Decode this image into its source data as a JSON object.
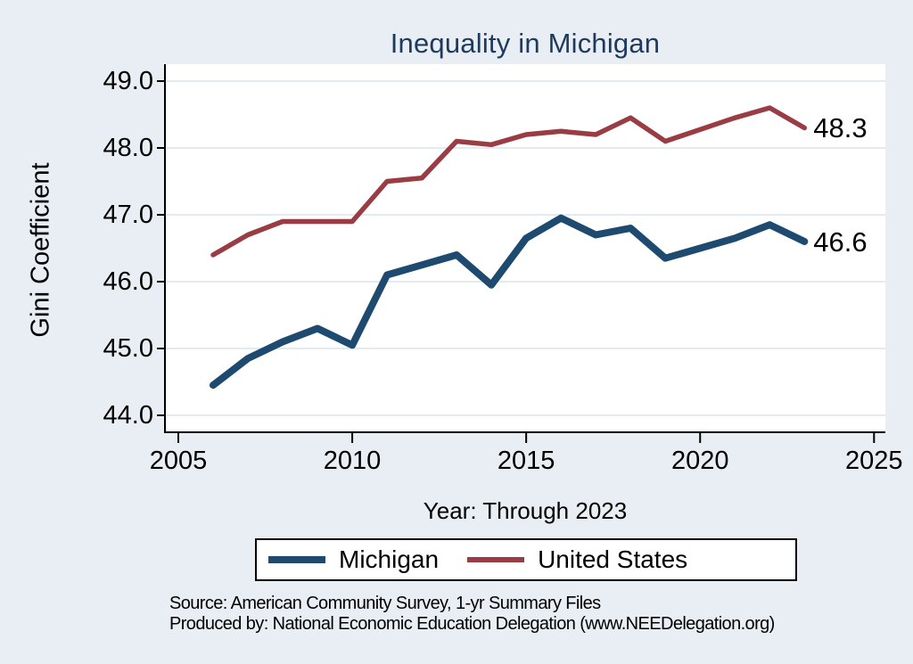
{
  "title": "Inequality in Michigan",
  "y_axis": {
    "label": "Gini Coefficient",
    "tick_labels": [
      "49.0",
      "48.0",
      "47.0",
      "46.0",
      "45.0",
      "44.0"
    ],
    "tick_values": [
      49,
      48,
      47,
      46,
      45,
      44
    ]
  },
  "x_axis": {
    "label": "Year: Through 2023",
    "tick_labels": [
      "2005",
      "2010",
      "2015",
      "2020",
      "2025"
    ],
    "tick_values": [
      2005,
      2010,
      2015,
      2020,
      2025
    ]
  },
  "legend": {
    "items": [
      {
        "label": "Michigan",
        "color": "#1e4a70"
      },
      {
        "label": "United States",
        "color": "#9a3c44"
      }
    ]
  },
  "end_labels": {
    "united_states": "48.3",
    "michigan": "46.6"
  },
  "source_lines": [
    "Source: American Community Survey, 1-yr Summary Files",
    "Produced by: National Economic Education Delegation (www.NEEDelegation.org)"
  ],
  "colors": {
    "background": "#e8eef3",
    "plot_background": "#ffffff",
    "gridline": "#e3ebf2",
    "axis": "#000000",
    "title": "#1e3a5e",
    "michigan_line": "#1e4a70",
    "united_states_line": "#9a3c44"
  },
  "chart_data": {
    "type": "line",
    "title": "Inequality in Michigan",
    "xlabel": "Year: Through 2023",
    "ylabel": "Gini Coefficient",
    "x": [
      2006,
      2007,
      2008,
      2009,
      2010,
      2011,
      2012,
      2013,
      2014,
      2015,
      2016,
      2017,
      2018,
      2019,
      2021,
      2022,
      2023
    ],
    "series": [
      {
        "name": "Michigan",
        "color": "#1e4a70",
        "stroke_width": 8,
        "values": [
          44.45,
          44.85,
          45.1,
          45.3,
          45.05,
          46.1,
          46.25,
          46.4,
          45.95,
          46.65,
          46.95,
          46.7,
          46.8,
          46.35,
          46.65,
          46.85,
          46.6
        ],
        "end_label": "46.6"
      },
      {
        "name": "United States",
        "color": "#9a3c44",
        "stroke_width": 5.5,
        "values": [
          46.4,
          46.7,
          46.9,
          46.9,
          46.9,
          47.5,
          47.55,
          48.1,
          48.05,
          48.2,
          48.25,
          48.2,
          48.45,
          48.1,
          48.45,
          48.6,
          48.3
        ],
        "end_label": "48.3"
      }
    ],
    "xlim": [
      2004.6,
      2025.3
    ],
    "ylim": [
      43.75,
      49.25
    ],
    "x_ticks": [
      2005,
      2010,
      2015,
      2020,
      2025
    ],
    "y_ticks": [
      44,
      45,
      46,
      47,
      48,
      49
    ],
    "grid": "horizontal",
    "legend_position": "bottom",
    "note": "No 2020 data point; line connects 2019 directly to 2021"
  }
}
